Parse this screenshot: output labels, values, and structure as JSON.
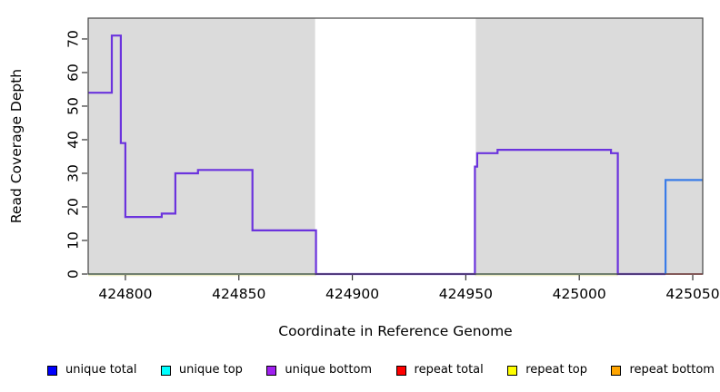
{
  "chart_data": {
    "type": "line",
    "title": "",
    "xlabel": "Coordinate in Reference Genome",
    "ylabel": "Read Coverage Depth",
    "xlim": [
      424783.6,
      425054.4
    ],
    "ylim": [
      0,
      76.2
    ],
    "xticks": [
      424800,
      424850,
      424900,
      424950,
      425000,
      425050
    ],
    "yticks": [
      0,
      10,
      20,
      30,
      40,
      50,
      60,
      70
    ],
    "grid": false,
    "legend_position": "bottom",
    "shaded_regions": {
      "color": "#DBDBDB",
      "ranges": [
        [
          424783.6,
          424883.6
        ],
        [
          424954.4,
          425054.4
        ]
      ]
    },
    "zero_lines": [
      {
        "name": "repeat-top-zero-line",
        "color": "#EDEDC4",
        "offset": 1.6,
        "width": 1.4,
        "segments": [
          [
            424783.6,
            424884
          ],
          [
            424954,
            425017
          ]
        ]
      },
      {
        "name": "unique-top-zero-line",
        "color": "#7FC97F",
        "offset": 0,
        "width": 1.4,
        "segments": [
          [
            424783.6,
            424884
          ],
          [
            424954,
            425017
          ]
        ]
      }
    ],
    "series": [
      {
        "name": "unique-bottom-trace",
        "label": "unique bottom",
        "color": "#6B33DD",
        "width": 2.2,
        "points": [
          [
            424783.6,
            54
          ],
          [
            424794,
            54
          ],
          [
            424794,
            71
          ],
          [
            424798,
            71
          ],
          [
            424798,
            39
          ],
          [
            424800,
            39
          ],
          [
            424800,
            17
          ],
          [
            424816,
            17
          ],
          [
            424816,
            18
          ],
          [
            424822,
            18
          ],
          [
            424822,
            30
          ],
          [
            424832,
            30
          ],
          [
            424832,
            31
          ],
          [
            424856,
            31
          ],
          [
            424856,
            13
          ],
          [
            424884,
            13
          ],
          [
            424884,
            0
          ],
          [
            424954,
            0
          ],
          [
            424954,
            32
          ],
          [
            424955,
            32
          ],
          [
            424955,
            36
          ],
          [
            424964,
            36
          ],
          [
            424964,
            37
          ],
          [
            425014,
            37
          ],
          [
            425014,
            36
          ],
          [
            425017,
            36
          ],
          [
            425017,
            0
          ],
          [
            425038,
            0
          ]
        ]
      },
      {
        "name": "repeat-total-trace",
        "label": "repeat total",
        "color": "#E05555",
        "width": 1.8,
        "points": [
          [
            425038,
            0
          ],
          [
            425054.4,
            0
          ]
        ]
      },
      {
        "name": "unique-total-trace",
        "label": "unique total",
        "color": "#3A7CE8",
        "width": 2.2,
        "points": [
          [
            425038,
            0
          ],
          [
            425038,
            28
          ],
          [
            425054.4,
            28
          ]
        ]
      }
    ],
    "legend": {
      "items": [
        {
          "label": "unique total",
          "color": "#0000FF"
        },
        {
          "label": "unique top",
          "color": "#00FFFF"
        },
        {
          "label": "unique bottom",
          "color": "#A020F0"
        },
        {
          "label": "repeat total",
          "color": "#FF0000"
        },
        {
          "label": "repeat top",
          "color": "#FFFF00"
        },
        {
          "label": "repeat bottom",
          "color": "#FFA500"
        }
      ]
    }
  }
}
